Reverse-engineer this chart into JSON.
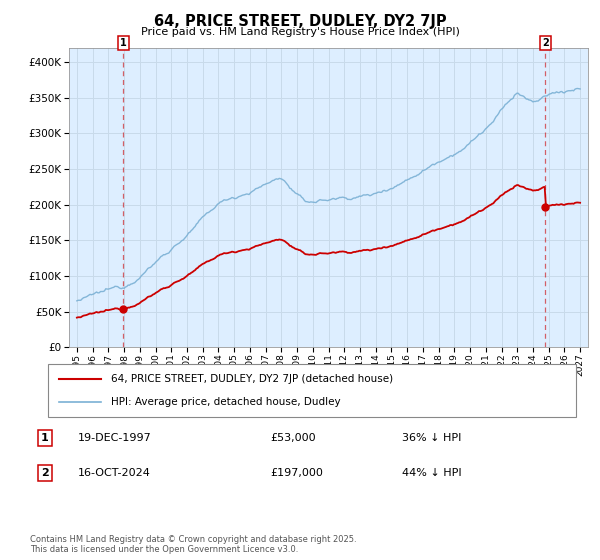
{
  "title": "64, PRICE STREET, DUDLEY, DY2 7JP",
  "subtitle": "Price paid vs. HM Land Registry's House Price Index (HPI)",
  "hpi_color": "#7ab0d4",
  "price_color": "#cc0000",
  "annotation_box_color": "#cc0000",
  "grid_color": "#c8daea",
  "background_color": "#ddeeff",
  "bg_alpha": 0.35,
  "ylim": [
    0,
    420000
  ],
  "yticks": [
    0,
    50000,
    100000,
    150000,
    200000,
    250000,
    300000,
    350000,
    400000
  ],
  "xlim_start": 1994.5,
  "xlim_end": 2027.5,
  "xticks": [
    1995,
    1996,
    1997,
    1998,
    1999,
    2000,
    2001,
    2002,
    2003,
    2004,
    2005,
    2006,
    2007,
    2008,
    2009,
    2010,
    2011,
    2012,
    2013,
    2014,
    2015,
    2016,
    2017,
    2018,
    2019,
    2020,
    2021,
    2022,
    2023,
    2024,
    2025,
    2026,
    2027
  ],
  "point1_x": 1997.96,
  "point1_y": 53000,
  "point1_label": "1",
  "point2_x": 2024.79,
  "point2_y": 197000,
  "point2_label": "2",
  "legend_line1": "64, PRICE STREET, DUDLEY, DY2 7JP (detached house)",
  "legend_line2": "HPI: Average price, detached house, Dudley",
  "table_row1_num": "1",
  "table_row1_date": "19-DEC-1997",
  "table_row1_price": "£53,000",
  "table_row1_hpi": "36% ↓ HPI",
  "table_row2_num": "2",
  "table_row2_date": "16-OCT-2024",
  "table_row2_price": "£197,000",
  "table_row2_hpi": "44% ↓ HPI",
  "footer": "Contains HM Land Registry data © Crown copyright and database right 2025.\nThis data is licensed under the Open Government Licence v3.0."
}
